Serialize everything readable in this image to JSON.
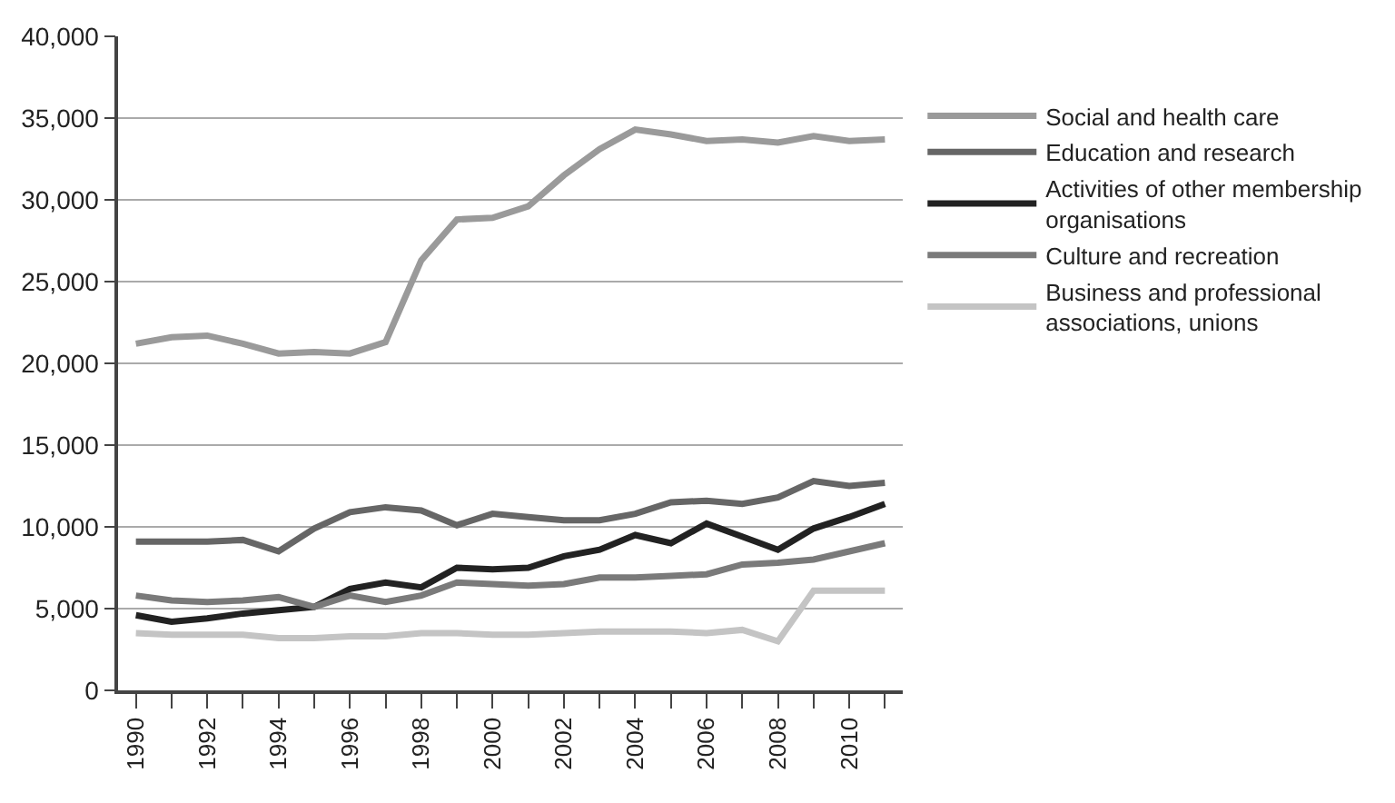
{
  "chart_data": {
    "type": "line",
    "x": [
      1990,
      1991,
      1992,
      1993,
      1994,
      1995,
      1996,
      1997,
      1998,
      1999,
      2000,
      2001,
      2002,
      2003,
      2004,
      2005,
      2006,
      2007,
      2008,
      2009,
      2010,
      2011
    ],
    "series": [
      {
        "name": "Social and health care",
        "color": "#9a9a9a",
        "values": [
          21200,
          21600,
          21700,
          21200,
          20600,
          20700,
          20600,
          21300,
          26300,
          28800,
          28900,
          29600,
          31500,
          33100,
          34300,
          34000,
          33600,
          33700,
          33500,
          33900,
          33600,
          33700
        ]
      },
      {
        "name": "Education and research",
        "color": "#666666",
        "values": [
          9100,
          9100,
          9100,
          9200,
          8500,
          9900,
          10900,
          11200,
          11000,
          10100,
          10800,
          10600,
          10400,
          10400,
          10800,
          11500,
          11600,
          11400,
          11800,
          12800,
          12500,
          12700
        ]
      },
      {
        "name": "Activities of other membership\norganisations",
        "color": "#222222",
        "values": [
          4600,
          4200,
          4400,
          4700,
          4900,
          5100,
          6200,
          6600,
          6300,
          7500,
          7400,
          7500,
          8200,
          8600,
          9500,
          9000,
          10200,
          9400,
          8600,
          9900,
          10600,
          11400
        ]
      },
      {
        "name": "Culture and recreation",
        "color": "#7a7a7a",
        "values": [
          5800,
          5500,
          5400,
          5500,
          5700,
          5100,
          5800,
          5400,
          5800,
          6600,
          6500,
          6400,
          6500,
          6900,
          6900,
          7000,
          7100,
          7700,
          7800,
          8000,
          8500,
          9000
        ]
      },
      {
        "name": "Business and professional\nassociations, unions",
        "color": "#c4c4c4",
        "values": [
          3500,
          3400,
          3400,
          3400,
          3200,
          3200,
          3300,
          3300,
          3500,
          3500,
          3400,
          3400,
          3500,
          3600,
          3600,
          3600,
          3500,
          3700,
          3000,
          6100,
          6100,
          6100
        ]
      }
    ],
    "xlim": [
      1989.5,
      2011.5
    ],
    "xticks": [
      1990,
      {
        "value": 1991,
        "label": null
      },
      1992,
      {
        "value": 1993,
        "label": null
      },
      1994,
      {
        "value": 1995,
        "label": null
      },
      1996,
      {
        "value": 1997,
        "label": null
      },
      1998,
      {
        "value": 1999,
        "label": null
      },
      2000,
      {
        "value": 2001,
        "label": null
      },
      2002,
      {
        "value": 2003,
        "label": null
      },
      2004,
      {
        "value": 2005,
        "label": null
      },
      2006,
      {
        "value": 2007,
        "label": null
      },
      2008,
      {
        "value": 2009,
        "label": null
      },
      2010,
      {
        "value": 2011,
        "label": null
      }
    ],
    "ylim": [
      0,
      40000
    ],
    "yticks": [
      {
        "value": 0,
        "label": "0"
      },
      {
        "value": 5000,
        "label": "5,000"
      },
      {
        "value": 10000,
        "label": "10,000"
      },
      {
        "value": 15000,
        "label": "15,000"
      },
      {
        "value": 20000,
        "label": "20,000"
      },
      {
        "value": 25000,
        "label": "25,000"
      },
      {
        "value": 30000,
        "label": "30,000"
      },
      {
        "value": 35000,
        "label": "35,000"
      },
      {
        "value": 40000,
        "label": "40,000"
      }
    ],
    "grid": "y",
    "legend": "right",
    "marker": "none",
    "line_style": "solid"
  }
}
